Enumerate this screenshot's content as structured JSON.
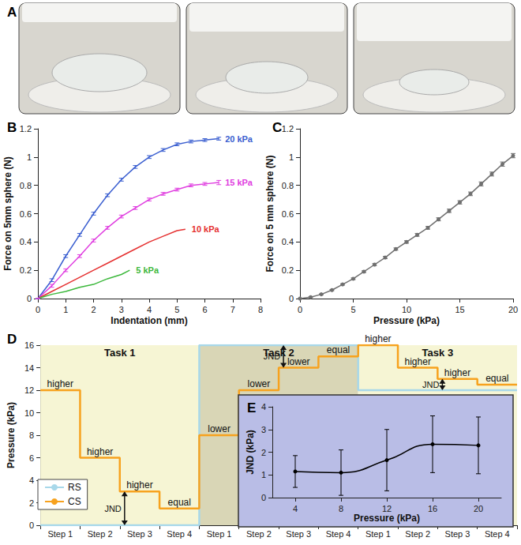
{
  "photo_panel": {
    "title": "A"
  },
  "chart_data": [
    {
      "type": "line",
      "title": "B",
      "x_label": "Indentation (mm)",
      "y_label": "Force on 5mm sphere (N)",
      "xlim": [
        0,
        8
      ],
      "xticks": [
        0,
        1,
        2,
        3,
        4,
        5,
        6,
        7,
        8
      ],
      "ylim": [
        0,
        1.2
      ],
      "yticks": [
        0,
        0.2,
        0.4,
        0.6,
        0.8,
        1,
        1.2
      ],
      "grid": false,
      "series": [
        {
          "name": "20 kPa",
          "color": "#3b5fd0",
          "marker": "none",
          "x": [
            0,
            0.5,
            1,
            1.5,
            2,
            2.5,
            3,
            3.5,
            4,
            4.5,
            5,
            5.5,
            6,
            6.5
          ],
          "values": [
            0,
            0.13,
            0.3,
            0.45,
            0.6,
            0.73,
            0.84,
            0.93,
            1.0,
            1.05,
            1.09,
            1.11,
            1.12,
            1.13
          ],
          "errors": [
            0,
            0.01,
            0.01,
            0.01,
            0.01,
            0.01,
            0.01,
            0.01,
            0.01,
            0.01,
            0.01,
            0.01,
            0.01,
            0.01
          ]
        },
        {
          "name": "15 kPa",
          "color": "#e040e0",
          "marker": "none",
          "x": [
            0,
            0.5,
            1,
            1.5,
            2,
            2.5,
            3,
            3.5,
            4,
            4.5,
            5,
            5.5,
            6,
            6.5
          ],
          "values": [
            0,
            0.09,
            0.2,
            0.3,
            0.41,
            0.5,
            0.58,
            0.64,
            0.7,
            0.74,
            0.77,
            0.8,
            0.81,
            0.82
          ],
          "errors": [
            0,
            0.01,
            0.01,
            0.01,
            0.01,
            0.01,
            0.01,
            0.01,
            0.01,
            0.01,
            0.01,
            0.01,
            0.01,
            0.015
          ]
        },
        {
          "name": "10 kPa",
          "color": "#e53030",
          "marker": "none",
          "x": [
            0,
            0.5,
            1,
            1.5,
            2,
            2.5,
            3,
            3.5,
            4,
            4.5,
            5,
            5.3
          ],
          "values": [
            0,
            0.05,
            0.1,
            0.15,
            0.2,
            0.25,
            0.3,
            0.35,
            0.4,
            0.44,
            0.48,
            0.49
          ]
        },
        {
          "name": "5 kPa",
          "color": "#3cb83c",
          "marker": "none",
          "x": [
            0,
            0.5,
            1,
            1.5,
            2,
            2.5,
            3,
            3.3
          ],
          "values": [
            0,
            0.03,
            0.05,
            0.08,
            0.1,
            0.14,
            0.17,
            0.2
          ]
        }
      ]
    },
    {
      "type": "line",
      "title": "C",
      "x_label": "Pressure (kPa)",
      "y_label": "Force on 5 mm sphere (N)",
      "xlim": [
        0,
        20
      ],
      "xticks": [
        0,
        5,
        10,
        15,
        20
      ],
      "ylim": [
        0,
        1.2
      ],
      "yticks": [
        0,
        0.2,
        0.4,
        0.6,
        0.8,
        1,
        1.2
      ],
      "grid": false,
      "color": "#707070",
      "marker": "circle",
      "x": [
        0,
        1,
        2,
        3,
        4,
        5,
        6,
        7,
        8,
        9,
        10,
        11,
        12,
        13,
        14,
        15,
        16,
        17,
        18,
        19,
        20
      ],
      "values": [
        0,
        0.01,
        0.03,
        0.06,
        0.1,
        0.14,
        0.19,
        0.24,
        0.29,
        0.35,
        0.4,
        0.45,
        0.5,
        0.56,
        0.62,
        0.68,
        0.74,
        0.81,
        0.88,
        0.95,
        1.01
      ],
      "errors": [
        0,
        0.002,
        0.003,
        0.004,
        0.005,
        0.006,
        0.006,
        0.007,
        0.008,
        0.008,
        0.009,
        0.01,
        0.01,
        0.011,
        0.012,
        0.012,
        0.013,
        0.014,
        0.014,
        0.015,
        0.015
      ]
    },
    {
      "type": "line",
      "title": "D",
      "y_label": "Pressure (kPa)",
      "line_style": "step",
      "categories": [
        "Step 1",
        "Step 2",
        "Step 3",
        "Step 4",
        "Step 1",
        "Step 2",
        "Step 3",
        "Step 4",
        "Step 1",
        "Step 2",
        "Step 3",
        "Step 4"
      ],
      "ylim": [
        0,
        16
      ],
      "yticks": [
        0,
        2,
        4,
        6,
        8,
        10,
        12,
        14,
        16
      ],
      "grid": false,
      "legend": "bottom-left",
      "tasks": [
        {
          "label": "Task 1",
          "first": 0,
          "last": 3
        },
        {
          "label": "Task 2",
          "first": 4,
          "last": 7
        },
        {
          "label": "Task 3",
          "first": 8,
          "last": 11
        }
      ],
      "series": [
        {
          "name": "RS",
          "color": "#a8d8ea",
          "values": [
            0,
            0,
            0,
            0,
            16,
            16,
            16,
            16,
            12,
            12,
            12,
            12
          ]
        },
        {
          "name": "CS",
          "color": "#f7a21e",
          "values": [
            12,
            6,
            3,
            1.5,
            8,
            12,
            14,
            15,
            16,
            14,
            13,
            12.5
          ],
          "step_labels": [
            "higher",
            "higher",
            "higher",
            "equal",
            "lower",
            "lower",
            "lower",
            "equal",
            "higher",
            "higher",
            "higher",
            "equal"
          ]
        }
      ],
      "annotations": [
        {
          "text": "JND",
          "index": 2,
          "from": 0,
          "to": 3
        },
        {
          "text": "JND",
          "index": 6,
          "from": 14,
          "to": 16
        },
        {
          "text": "JND",
          "index": 10,
          "from": 12,
          "to": 13
        }
      ]
    },
    {
      "type": "line",
      "title": "E",
      "x_label": "Pressure (kPa)",
      "y_label": "JND (kPa)",
      "xlim": [
        2,
        22
      ],
      "xticks": [
        4,
        8,
        12,
        16,
        20
      ],
      "ylim": [
        0,
        4
      ],
      "yticks": [
        0,
        1,
        2,
        3,
        4
      ],
      "grid": false,
      "color": "#000000",
      "marker": "circle",
      "line_style": "smooth",
      "x": [
        4,
        8,
        12,
        16,
        20
      ],
      "values": [
        1.15,
        1.1,
        1.65,
        2.35,
        2.3
      ],
      "errors": [
        0.7,
        1.0,
        1.35,
        1.25,
        1.25
      ]
    }
  ]
}
